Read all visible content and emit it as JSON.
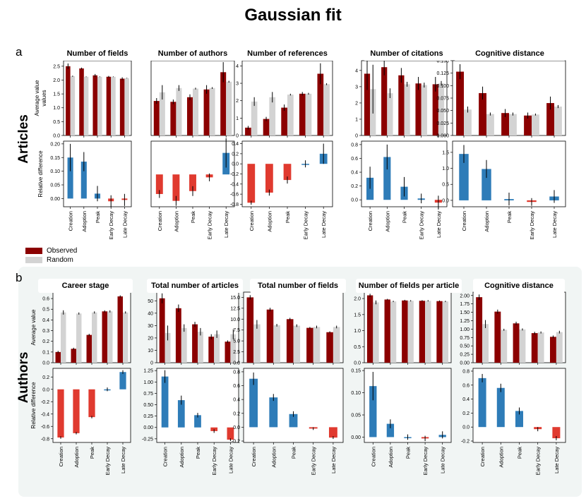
{
  "title": "Gaussian fit",
  "panels": {
    "a": "a",
    "b": "b"
  },
  "rows": {
    "articles": "Articles",
    "authors": "Authors"
  },
  "legend": [
    {
      "label": "Observed",
      "color": "#8b0000"
    },
    {
      "label": "Random",
      "color": "#d3d3d3"
    }
  ],
  "colors": {
    "observed": "#8b0000",
    "random": "#d3d3d3",
    "positive": "#2e7cb8",
    "negative": "#e03a2f"
  },
  "chart_data": [
    {
      "id": "a-fields-avg",
      "type": "bar",
      "title": "Number of fields",
      "ylabel": "Average value\nvalues",
      "categories": [
        "Creation",
        "Adoption",
        "Peak",
        "Early Decay",
        "Late Decay"
      ],
      "series": [
        {
          "name": "Observed",
          "values": [
            2.5,
            2.42,
            2.17,
            2.12,
            2.05
          ]
        },
        {
          "name": "Random",
          "values": [
            2.14,
            2.12,
            2.12,
            2.12,
            2.07
          ]
        }
      ],
      "ylim": [
        0,
        2.7
      ],
      "yticks": [
        0.0,
        0.5,
        1.0,
        1.5,
        2.0,
        2.5
      ]
    },
    {
      "id": "a-authors-avg",
      "type": "bar",
      "title": "Number of authors",
      "ylabel": "",
      "categories": [
        "Creation",
        "Adoption",
        "Peak",
        "Early Decay",
        "Late Decay"
      ],
      "series": [
        {
          "name": "Observed",
          "values": [
            1.2,
            1.17,
            1.33,
            1.6,
            2.2
          ]
        },
        {
          "name": "Random",
          "values": [
            1.5,
            1.65,
            1.63,
            1.65,
            1.87
          ]
        }
      ],
      "ylim": [
        0,
        2.6
      ],
      "yticks": []
    },
    {
      "id": "a-references-avg",
      "type": "bar",
      "title": "Number of references",
      "ylabel": "",
      "categories": [
        "Creation",
        "Adoption",
        "Peak",
        "Early Decay",
        "Late Decay"
      ],
      "series": [
        {
          "name": "Observed",
          "values": [
            0.45,
            0.95,
            1.6,
            2.4,
            3.55
          ]
        },
        {
          "name": "Random",
          "values": [
            1.95,
            2.2,
            2.35,
            2.4,
            2.95
          ]
        }
      ],
      "ylim": [
        0,
        4.3
      ],
      "yticks": [
        0,
        1,
        2,
        3,
        4
      ]
    },
    {
      "id": "a-citations-avg",
      "type": "bar",
      "title": "Number of citations",
      "ylabel": "",
      "categories": [
        "Creation",
        "Adoption",
        "Peak",
        "Early Decay",
        "Late Decay"
      ],
      "series": [
        {
          "name": "Observed",
          "values": [
            3.8,
            4.2,
            3.7,
            3.2,
            3.15
          ]
        },
        {
          "name": "Random",
          "values": [
            2.85,
            2.6,
            3.15,
            3.1,
            3.2
          ]
        }
      ],
      "ylim": [
        0,
        4.6
      ],
      "yticks": [
        0,
        1,
        2,
        3,
        4
      ]
    },
    {
      "id": "a-cogdist-avg",
      "type": "bar",
      "title": "Cognitive distance",
      "ylabel": "",
      "categories": [
        "Creation",
        "Adoption",
        "Peak",
        "Early Decay",
        "Late Decay"
      ],
      "series": [
        {
          "name": "Observed",
          "values": [
            0.128,
            0.085,
            0.045,
            0.04,
            0.065
          ]
        },
        {
          "name": "Random",
          "values": [
            0.052,
            0.043,
            0.043,
            0.042,
            0.058
          ]
        }
      ],
      "ylim": [
        0,
        0.15
      ],
      "yticks": [
        0.0,
        0.025,
        0.05,
        0.075,
        0.1,
        0.125,
        0.15
      ]
    },
    {
      "id": "a-fields-rel",
      "type": "bar",
      "title": "",
      "ylabel": "Relative difference",
      "categories": [
        "Creation",
        "Adoption",
        "Peak",
        "Early Decay",
        "Late Decay"
      ],
      "values": [
        0.15,
        0.135,
        0.018,
        -0.01,
        -0.005
      ],
      "ylim": [
        -0.03,
        0.21
      ],
      "yticks": [
        0.0,
        0.05,
        0.1,
        0.15,
        0.2
      ]
    },
    {
      "id": "a-authors-rel",
      "type": "bar",
      "title": "",
      "ylabel": "",
      "categories": [
        "Creation",
        "Adoption",
        "Peak",
        "Early Decay",
        "Late Decay"
      ],
      "values": [
        -0.2,
        -0.27,
        -0.17,
        -0.03,
        0.22
      ],
      "ylim": [
        -0.33,
        0.34
      ],
      "yticks": []
    },
    {
      "id": "a-references-rel",
      "type": "bar",
      "title": "",
      "ylabel": "",
      "categories": [
        "Creation",
        "Adoption",
        "Peak",
        "Early Decay",
        "Late Decay"
      ],
      "values": [
        -0.77,
        -0.57,
        -0.32,
        0.0,
        0.2
      ],
      "ylim": [
        -0.85,
        0.45
      ],
      "yticks": [
        -0.8,
        -0.6,
        -0.4,
        -0.2,
        0.0,
        0.2,
        0.4
      ]
    },
    {
      "id": "a-citations-rel",
      "type": "bar",
      "title": "",
      "ylabel": "",
      "categories": [
        "Creation",
        "Adoption",
        "Peak",
        "Early Decay",
        "Late Decay"
      ],
      "values": [
        0.32,
        0.62,
        0.19,
        0.02,
        -0.04
      ],
      "ylim": [
        -0.1,
        0.85
      ],
      "yticks": [
        0.0,
        0.2,
        0.4,
        0.6,
        0.8
      ]
    },
    {
      "id": "a-cogdist-rel",
      "type": "bar",
      "title": "",
      "ylabel": "",
      "categories": [
        "Creation",
        "Adoption",
        "Peak",
        "Early Decay",
        "Late Decay"
      ],
      "values": [
        1.45,
        0.98,
        0.04,
        -0.05,
        0.12
      ],
      "ylim": [
        -0.2,
        1.85
      ],
      "yticks": [
        0.0,
        0.5,
        1.0,
        1.5
      ]
    },
    {
      "id": "b-career-avg",
      "type": "bar",
      "title": "Career stage",
      "ylabel": "Average value",
      "categories": [
        "Creation",
        "Adoption",
        "Peak",
        "Early Decay",
        "Late Decay"
      ],
      "series": [
        {
          "name": "Observed",
          "values": [
            0.1,
            0.13,
            0.26,
            0.48,
            0.62
          ]
        },
        {
          "name": "Random",
          "values": [
            0.47,
            0.46,
            0.47,
            0.48,
            0.47
          ]
        }
      ],
      "ylim": [
        0,
        0.66
      ],
      "yticks": [
        0.0,
        0.1,
        0.2,
        0.3,
        0.4,
        0.5,
        0.6
      ]
    },
    {
      "id": "b-articles-avg",
      "type": "bar",
      "title": "Total number of articles",
      "ylabel": "",
      "categories": [
        "Creation",
        "Adoption",
        "Peak",
        "Early Decay",
        "Late Decay"
      ],
      "series": [
        {
          "name": "Observed",
          "values": [
            52,
            44,
            31,
            21,
            17
          ]
        },
        {
          "name": "Random",
          "values": [
            24,
            28,
            25,
            23,
            23
          ]
        }
      ],
      "ylim": [
        0,
        57
      ],
      "yticks": [
        0,
        10,
        20,
        30,
        40,
        50
      ]
    },
    {
      "id": "b-fields-avg",
      "type": "bar",
      "title": "Total number of fields",
      "ylabel": "",
      "categories": [
        "Creation",
        "Adoption",
        "Peak",
        "Early Decay",
        "Late Decay"
      ],
      "series": [
        {
          "name": "Observed",
          "values": [
            15.0,
            12.2,
            10.0,
            8.0,
            7.0
          ]
        },
        {
          "name": "Random",
          "values": [
            8.8,
            8.6,
            8.5,
            8.2,
            8.2
          ]
        }
      ],
      "ylim": [
        0,
        16.2
      ],
      "yticks": [
        0.0,
        2.5,
        5.0,
        7.5,
        10.0,
        12.5,
        15.0
      ]
    },
    {
      "id": "b-fpa-avg",
      "type": "bar",
      "title": "Number of fields per article",
      "ylabel": "",
      "categories": [
        "Creation",
        "Adoption",
        "Peak",
        "Early Decay",
        "Late Decay"
      ],
      "series": [
        {
          "name": "Observed",
          "values": [
            2.1,
            1.97,
            1.94,
            1.93,
            1.92
          ]
        },
        {
          "name": "Random",
          "values": [
            1.88,
            1.91,
            1.93,
            1.93,
            1.91
          ]
        }
      ],
      "ylim": [
        0,
        2.2
      ],
      "yticks": [
        0.0,
        0.5,
        1.0,
        1.5,
        2.0
      ]
    },
    {
      "id": "b-cogdist-avg",
      "type": "bar",
      "title": "Cognitive distance",
      "ylabel": "",
      "categories": [
        "Creation",
        "Adoption",
        "Peak",
        "Early Decay",
        "Late Decay"
      ],
      "series": [
        {
          "name": "Observed",
          "values": [
            1.95,
            1.52,
            1.17,
            0.88,
            0.77
          ]
        },
        {
          "name": "Random",
          "values": [
            1.15,
            0.98,
            0.99,
            0.9,
            0.91
          ]
        }
      ],
      "ylim": [
        0,
        2.1
      ],
      "yticks": [
        0.0,
        0.25,
        0.5,
        0.75,
        1.0,
        1.25,
        1.5,
        1.75,
        2.0
      ]
    },
    {
      "id": "b-career-rel",
      "type": "bar",
      "title": "",
      "ylabel": "Relative difference",
      "categories": [
        "Creation",
        "Adoption",
        "Peak",
        "Early Decay",
        "Late Decay"
      ],
      "values": [
        -0.78,
        -0.71,
        -0.45,
        0.0,
        0.28
      ],
      "ylim": [
        -0.86,
        0.34
      ],
      "yticks": [
        -0.8,
        -0.6,
        -0.4,
        -0.2,
        0.0,
        0.2
      ]
    },
    {
      "id": "b-articles-rel",
      "type": "bar",
      "title": "",
      "ylabel": "",
      "categories": [
        "Creation",
        "Adoption",
        "Peak",
        "Early Decay",
        "Late Decay"
      ],
      "values": [
        1.12,
        0.6,
        0.27,
        -0.08,
        -0.27
      ],
      "ylim": [
        -0.33,
        1.3
      ],
      "yticks": [
        -0.25,
        0.0,
        0.25,
        0.5,
        0.75,
        1.0,
        1.25
      ]
    },
    {
      "id": "b-fields-rel",
      "type": "bar",
      "title": "",
      "ylabel": "",
      "categories": [
        "Creation",
        "Adoption",
        "Peak",
        "Early Decay",
        "Late Decay"
      ],
      "values": [
        0.7,
        0.43,
        0.19,
        -0.02,
        -0.15
      ],
      "ylim": [
        -0.22,
        0.85
      ],
      "yticks": [
        -0.2,
        0.0,
        0.2,
        0.4,
        0.6,
        0.8
      ]
    },
    {
      "id": "b-fpa-rel",
      "type": "bar",
      "title": "",
      "ylabel": "",
      "categories": [
        "Creation",
        "Adoption",
        "Peak",
        "Early Decay",
        "Late Decay"
      ],
      "values": [
        0.115,
        0.03,
        0.0,
        -0.003,
        0.005
      ],
      "ylim": [
        -0.012,
        0.155
      ],
      "yticks": [
        0.0,
        0.05,
        0.1,
        0.15
      ]
    },
    {
      "id": "b-cogdist-rel",
      "type": "bar",
      "title": "",
      "ylabel": "",
      "categories": [
        "Creation",
        "Adoption",
        "Peak",
        "Early Decay",
        "Late Decay"
      ],
      "values": [
        0.7,
        0.56,
        0.23,
        -0.03,
        -0.16
      ],
      "ylim": [
        -0.22,
        0.84
      ],
      "yticks": [
        -0.2,
        0.0,
        0.2,
        0.4,
        0.6,
        0.8
      ]
    }
  ]
}
